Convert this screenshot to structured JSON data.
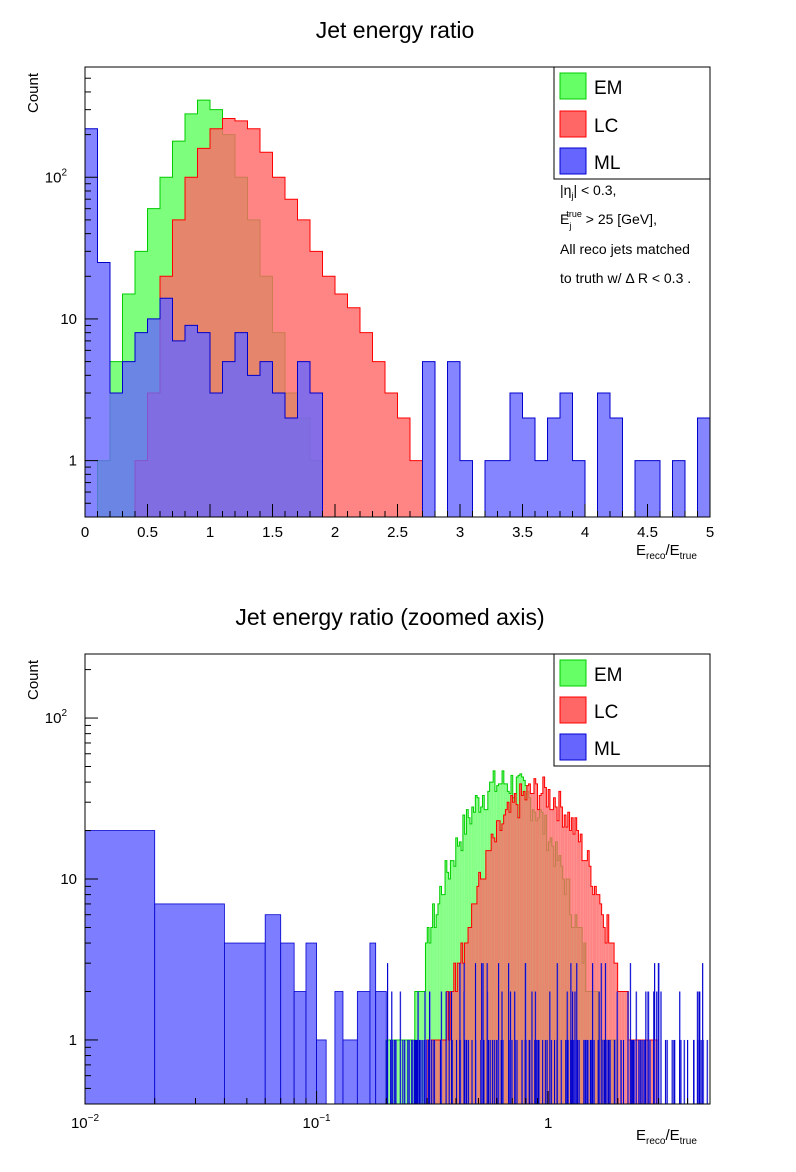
{
  "colors": {
    "EM": "#66ff66",
    "EM_line": "#00cc00",
    "LC": "#ff6666",
    "LC_line": "#ff0000",
    "ML": "#6666ff",
    "ML_line": "#0000cc"
  },
  "chart_data": [
    {
      "type": "histogram",
      "title": "Jet energy ratio",
      "xlabel_main": "E",
      "xlabel_sub1": "reco",
      "xlabel_mid": "/E",
      "xlabel_sub2": "true",
      "ylabel": "Count",
      "xscale": "linear",
      "yscale": "log",
      "xlim": [
        0,
        5
      ],
      "ylim": [
        0.4,
        600
      ],
      "xticks": [
        "0",
        "0.5",
        "1",
        "1.5",
        "2",
        "2.5",
        "3",
        "3.5",
        "4",
        "4.5",
        "5"
      ],
      "yticks": [
        {
          "base": "1",
          "exp": ""
        },
        {
          "base": "10",
          "exp": ""
        },
        {
          "base": "10",
          "exp": "2"
        }
      ],
      "legend": [
        "EM",
        "LC",
        "ML"
      ],
      "legend_position": "top-right",
      "annotations": [
        {
          "pre": "|η",
          "sub": "j",
          "sup": "",
          "post": "| < 0.3,"
        },
        {
          "pre": "E",
          "sub": "j",
          "sup": "true",
          "post": " > 25 [GeV],"
        },
        {
          "pre": "All reco jets matched",
          "sub": "",
          "sup": "",
          "post": ""
        },
        {
          "pre": "to truth w/  Δ R < 0.3 .",
          "sub": "",
          "sup": "",
          "post": ""
        }
      ],
      "bin_edges_start": 0,
      "bin_width": 0.1,
      "series": [
        {
          "name": "EM",
          "counts": [
            0,
            1,
            5,
            15,
            30,
            60,
            100,
            180,
            280,
            350,
            300,
            200,
            100,
            50,
            20,
            8,
            3,
            2,
            1,
            0,
            0,
            0,
            0,
            0,
            0,
            0,
            0,
            0,
            0,
            0,
            0,
            0,
            0,
            0,
            0,
            0,
            0,
            0,
            0,
            0,
            0,
            0,
            0,
            0,
            0,
            0,
            0,
            0,
            0,
            0
          ]
        },
        {
          "name": "LC",
          "counts": [
            0,
            0,
            0,
            0,
            1,
            3,
            20,
            50,
            100,
            160,
            220,
            260,
            250,
            220,
            150,
            100,
            70,
            50,
            30,
            20,
            15,
            12,
            8,
            5,
            3,
            2,
            1,
            0,
            0,
            0,
            0,
            0,
            0,
            0,
            0,
            0,
            0,
            0,
            0,
            0,
            0,
            0,
            0,
            0,
            0,
            0,
            0,
            0,
            0,
            0
          ]
        },
        {
          "name": "ML",
          "counts": [
            220,
            25,
            3,
            5,
            8,
            10,
            14,
            7,
            9,
            8,
            3,
            5,
            8,
            4,
            5,
            3,
            2,
            5,
            3,
            0,
            0,
            0,
            0,
            0,
            0,
            0,
            0,
            5,
            0,
            5,
            1,
            0,
            1,
            1,
            3,
            2,
            1,
            2,
            3,
            1,
            0,
            3,
            2,
            0,
            1,
            1,
            0,
            1,
            0,
            2
          ]
        }
      ]
    },
    {
      "type": "histogram",
      "title": "Jet energy ratio (zoomed axis)",
      "xlabel_main": "E",
      "xlabel_sub1": "reco",
      "xlabel_mid": "/E",
      "xlabel_sub2": "true",
      "ylabel": "Count",
      "xscale": "log",
      "yscale": "log",
      "xlim": [
        0.01,
        5
      ],
      "ylim": [
        0.4,
        250
      ],
      "xticks": [
        {
          "base": "10",
          "exp": "−2"
        },
        {
          "base": "10",
          "exp": "−1"
        },
        {
          "base": "1",
          "exp": ""
        }
      ],
      "yticks": [
        {
          "base": "1",
          "exp": ""
        },
        {
          "base": "10",
          "exp": ""
        },
        {
          "base": "10",
          "exp": "2"
        }
      ],
      "legend": [
        "EM",
        "LC",
        "ML"
      ],
      "legend_position": "top-right",
      "series": [
        {
          "name": "EM",
          "peak_x": 0.65,
          "peak_count": 40,
          "range": [
            0.2,
            2.0
          ]
        },
        {
          "name": "LC",
          "peak_x": 0.9,
          "peak_count": 35,
          "range": [
            0.3,
            3.0
          ]
        },
        {
          "name": "ML",
          "bins": [
            {
              "x0": 0.01,
              "x1": 0.02,
              "y": 20
            },
            {
              "x0": 0.02,
              "x1": 0.04,
              "y": 7
            },
            {
              "x0": 0.04,
              "x1": 0.06,
              "y": 4
            },
            {
              "x0": 0.06,
              "x1": 0.07,
              "y": 6
            },
            {
              "x0": 0.07,
              "x1": 0.08,
              "y": 4
            },
            {
              "x0": 0.08,
              "x1": 0.09,
              "y": 2
            },
            {
              "x0": 0.09,
              "x1": 0.1,
              "y": 4
            },
            {
              "x0": 0.1,
              "x1": 0.11,
              "y": 1
            },
            {
              "x0": 0.12,
              "x1": 0.13,
              "y": 2
            },
            {
              "x0": 0.13,
              "x1": 0.15,
              "y": 1
            },
            {
              "x0": 0.15,
              "x1": 0.17,
              "y": 2
            },
            {
              "x0": 0.17,
              "x1": 0.18,
              "y": 4
            },
            {
              "x0": 0.18,
              "x1": 0.2,
              "y": 2
            }
          ]
        }
      ]
    }
  ]
}
